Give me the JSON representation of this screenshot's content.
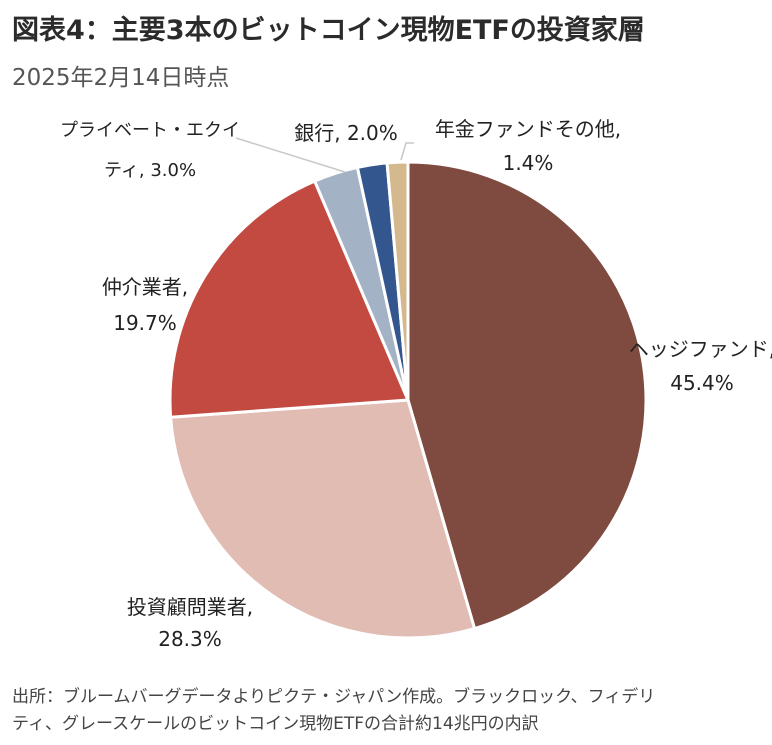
{
  "title": "図表4：主要3本のビットコイン現物ETFの投資家層",
  "subtitle": "2025年2月14日時点",
  "footer": {
    "line1": "出所：ブルームバーグデータよりピクテ・ジャパン作成。ブラックロック、フィデリ",
    "line2": "ティ、グレースケールのビットコイン現物ETFの合計約14兆円の内訳"
  },
  "chart_data": {
    "type": "pie",
    "title": "図表4：主要3本のビットコイン現物ETFの投資家層",
    "subtitle": "2025年2月14日時点",
    "unit": "%",
    "slices": [
      {
        "label": "ヘッジファンド",
        "value": 45.4,
        "value_text": "45.4%",
        "color": "#7f4a3f"
      },
      {
        "label": "投資顧問業者",
        "value": 28.3,
        "value_text": "28.3%",
        "color": "#e0bcb2"
      },
      {
        "label": "仲介業者",
        "value": 19.7,
        "value_text": "19.7%",
        "color": "#c24a40"
      },
      {
        "label": "プライベート・エクイティ",
        "value": 3.0,
        "value_text": "3.0%",
        "color": "#a4b2c5"
      },
      {
        "label": "銀行",
        "value": 2.0,
        "value_text": "2.0%",
        "color": "#34568e"
      },
      {
        "label": "年金ファンドその他",
        "value": 1.4,
        "value_text": "1.4%",
        "color": "#d4b98f"
      }
    ],
    "labels": [
      {
        "line1": "ヘッジファンド,",
        "line2": "45.4%"
      },
      {
        "line1": "投資顧問業者,",
        "line2": "28.3%"
      },
      {
        "line1": "仲介業者,",
        "line2": "19.7%"
      },
      {
        "line1": "プライベート・エクイ",
        "line2": "ティ, 3.0%"
      },
      {
        "line1": "銀行, 2.0%",
        "line2": ""
      },
      {
        "line1": "年金ファンドその他,",
        "line2": "1.4%"
      }
    ],
    "start": "12 o'clock, clockwise",
    "legend": "none (data labels outside slices)"
  }
}
